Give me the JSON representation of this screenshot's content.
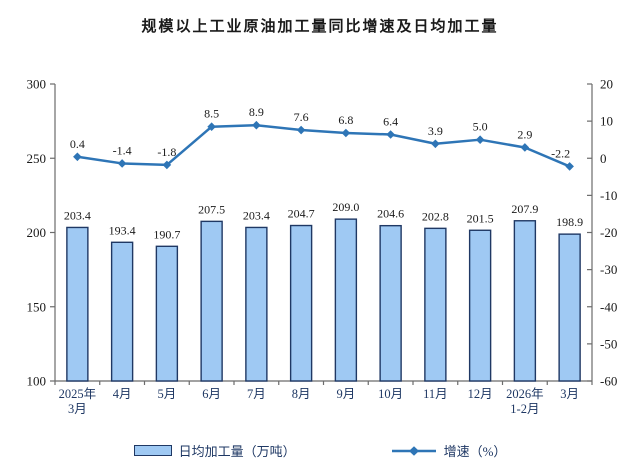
{
  "title": "规模以上工业原油加工量同比增速及日均加工量",
  "legend": {
    "bar_label": "日均加工量（万吨）",
    "line_label": "增速（%）"
  },
  "colors": {
    "bar_fill": "#9FC9F3",
    "bar_stroke": "#1F3864",
    "line": "#2E75B6",
    "axis": "#6b6b6b",
    "x_label": "#1F3864",
    "y_label": "#1a1a1a",
    "data_label": "#1a1a1a"
  },
  "chart_data": {
    "type": "bar+line combo",
    "title": "规模以上工业原油加工量同比增速及日均加工量",
    "categories": [
      "2025年\n3月",
      "4月",
      "5月",
      "6月",
      "7月",
      "8月",
      "9月",
      "10月",
      "11月",
      "12月",
      "2026年\n1-2月",
      "3月"
    ],
    "series": [
      {
        "name": "日均加工量（万吨）",
        "type": "bar",
        "axis": "left",
        "values": [
          203.4,
          193.4,
          190.7,
          207.5,
          203.4,
          204.7,
          209.0,
          204.6,
          202.8,
          201.5,
          207.9,
          198.9
        ]
      },
      {
        "name": "增速（%）",
        "type": "line",
        "axis": "right",
        "values": [
          0.4,
          -1.4,
          -1.8,
          8.5,
          8.9,
          7.6,
          6.8,
          6.4,
          3.9,
          5.0,
          2.9,
          -2.2
        ]
      }
    ],
    "left_axis": {
      "min": 100,
      "max": 300,
      "step": 50
    },
    "right_axis": {
      "min": -60,
      "max": 20,
      "step": 10
    },
    "grid": "off",
    "legend_position": "bottom",
    "data_labels": "on",
    "decimals": 1
  }
}
